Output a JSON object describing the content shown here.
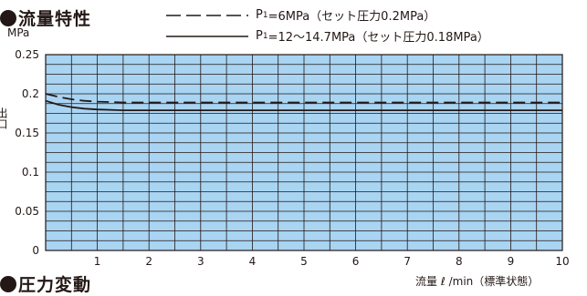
{
  "headings": {
    "flow": "流量特性",
    "pressure": "圧力変動"
  },
  "legend": [
    {
      "p_label": "P",
      "p_sub": "1",
      "text": "=6MPa（セット圧力0.2MPa）",
      "style": "dashed"
    },
    {
      "p_label": "P",
      "p_sub": "1",
      "text": "=12〜14.7MPa（セット圧力0.18MPa）",
      "style": "solid"
    }
  ],
  "colors": {
    "plot_bg": "#a9d4f2",
    "grid": "#231815",
    "line": "#231815"
  },
  "chart_data": {
    "type": "line",
    "title": "流量特性",
    "ylabel": "MPa",
    "ylabel_partial": "出口",
    "xlabel": "流量 ℓ /min（標準状態）",
    "xlim": [
      0,
      10
    ],
    "ylim": [
      0,
      0.25
    ],
    "x_ticks": [
      1,
      2,
      3,
      4,
      5,
      6,
      7,
      8,
      9,
      10
    ],
    "x_tick_labels": [
      "1",
      "2",
      "3",
      "4",
      "5",
      "6",
      "7",
      "8",
      "9",
      "10"
    ],
    "y_ticks": [
      0,
      0.05,
      0.1,
      0.15,
      0.2,
      0.25
    ],
    "y_tick_labels": [
      "0",
      "0.05",
      "0.1",
      "0.15",
      "0.2",
      "0.25"
    ],
    "grid": true,
    "series": [
      {
        "name": "P1=6MPa（セット圧力0.2MPa）",
        "style": "dashed",
        "x": [
          0,
          0.25,
          0.5,
          0.75,
          1,
          1.5,
          2,
          3,
          4,
          5,
          6,
          7,
          8,
          9,
          10
        ],
        "y": [
          0.2,
          0.196,
          0.193,
          0.191,
          0.19,
          0.189,
          0.189,
          0.189,
          0.189,
          0.189,
          0.189,
          0.189,
          0.189,
          0.189,
          0.189
        ]
      },
      {
        "name": "P1=12〜14.7MPa（セット圧力0.18MPa）",
        "style": "solid",
        "x": [
          0,
          0.25,
          0.5,
          0.75,
          1,
          1.5,
          2,
          3,
          4,
          5,
          6,
          7,
          8,
          9,
          10
        ],
        "y": [
          0.191,
          0.186,
          0.183,
          0.181,
          0.18,
          0.179,
          0.179,
          0.179,
          0.179,
          0.179,
          0.179,
          0.179,
          0.179,
          0.179,
          0.179
        ]
      }
    ]
  }
}
